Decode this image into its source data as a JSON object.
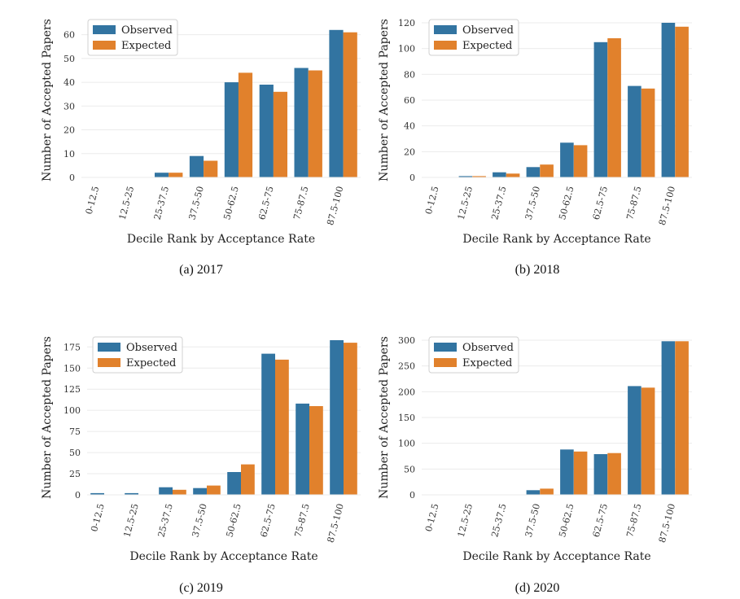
{
  "colors": {
    "observed": "#3274a1",
    "expected": "#e1812c",
    "grid": "#ebebeb"
  },
  "chart_data": [
    {
      "type": "bar",
      "caption": "(a) 2017",
      "categories": [
        "0-12.5",
        "12.5-25",
        "25-37.5",
        "37.5-50",
        "50-62.5",
        "62.5-75",
        "75-87.5",
        "87.5-100"
      ],
      "series": [
        {
          "name": "Observed",
          "values": [
            0,
            0,
            2,
            9,
            40,
            39,
            46,
            62
          ]
        },
        {
          "name": "Expected",
          "values": [
            0,
            0,
            2,
            7,
            44,
            36,
            45,
            61
          ]
        }
      ],
      "xlabel": "Decile Rank by Acceptance Rate",
      "ylabel": "Number of Accepted Papers",
      "yticks": [
        0,
        10,
        20,
        30,
        40,
        50,
        60
      ],
      "ylim": [
        0,
        65
      ],
      "grid": "y",
      "legend": "top-left"
    },
    {
      "type": "bar",
      "caption": "(b) 2018",
      "categories": [
        "0-12.5",
        "12.5-25",
        "25-37.5",
        "37.5-50",
        "50-62.5",
        "62.5-75",
        "75-87.5",
        "87.5-100"
      ],
      "series": [
        {
          "name": "Observed",
          "values": [
            0,
            1,
            4,
            8,
            27,
            105,
            71,
            120
          ]
        },
        {
          "name": "Expected",
          "values": [
            0,
            1,
            3,
            10,
            25,
            108,
            69,
            117
          ]
        }
      ],
      "xlabel": "Decile Rank by Acceptance Rate",
      "ylabel": "Number of Accepted Papers",
      "yticks": [
        0,
        20,
        40,
        60,
        80,
        100,
        120
      ],
      "ylim": [
        0,
        120
      ],
      "grid": "y",
      "legend": "top-left"
    },
    {
      "type": "bar",
      "caption": "(c) 2019",
      "categories": [
        "0-12.5",
        "12.5-25",
        "25-37.5",
        "37.5-50",
        "50-62.5",
        "62.5-75",
        "75-87.5",
        "87.5-100"
      ],
      "series": [
        {
          "name": "Observed",
          "values": [
            2,
            2,
            9,
            8,
            27,
            167,
            108,
            183
          ]
        },
        {
          "name": "Expected",
          "values": [
            0,
            0,
            6,
            11,
            36,
            160,
            105,
            180
          ]
        }
      ],
      "xlabel": "Decile Rank by Acceptance Rate",
      "ylabel": "Number of Accepted Papers",
      "yticks": [
        0,
        25,
        50,
        75,
        100,
        125,
        150,
        175
      ],
      "ylim": [
        0,
        183
      ],
      "grid": "y",
      "legend": "top-left"
    },
    {
      "type": "bar",
      "caption": "(d) 2020",
      "categories": [
        "0-12.5",
        "12.5-25",
        "25-37.5",
        "37.5-50",
        "50-62.5",
        "62.5-75",
        "75-87.5",
        "87.5-100"
      ],
      "series": [
        {
          "name": "Observed",
          "values": [
            0,
            0,
            0,
            9,
            88,
            79,
            211,
            298
          ]
        },
        {
          "name": "Expected",
          "values": [
            0,
            0,
            0,
            12,
            84,
            81,
            208,
            298
          ]
        }
      ],
      "xlabel": "Decile Rank by Acceptance Rate",
      "ylabel": "Number of Accepted Papers",
      "yticks": [
        0,
        50,
        100,
        150,
        200,
        250,
        300
      ],
      "ylim": [
        0,
        300
      ],
      "grid": "y",
      "legend": "top-left"
    }
  ]
}
